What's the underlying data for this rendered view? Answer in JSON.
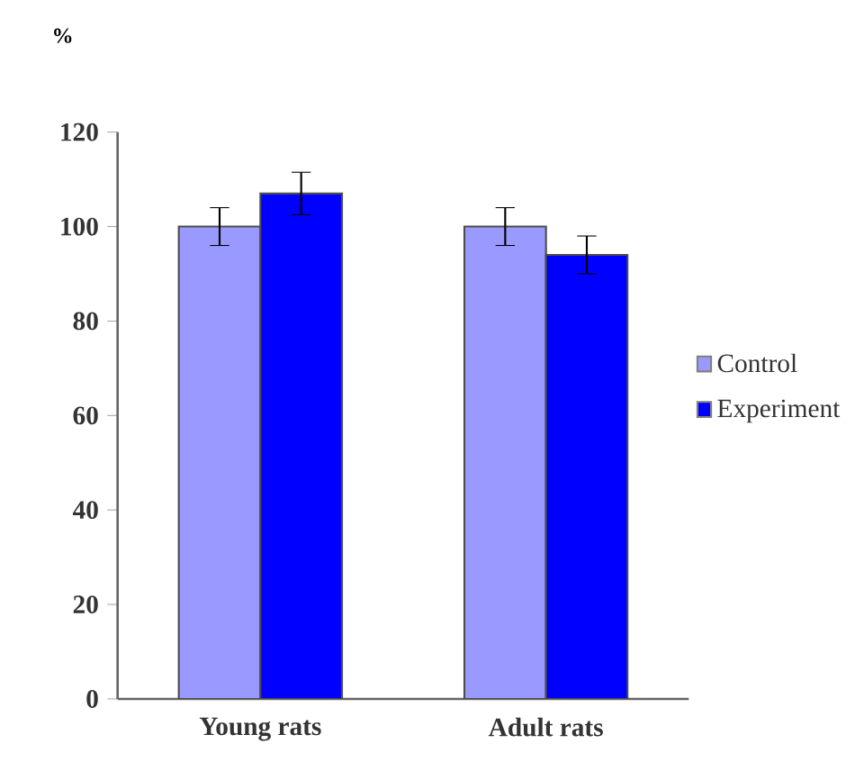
{
  "chart_data": {
    "type": "bar",
    "ylabel": "%",
    "categories": [
      "Young rats",
      "Adult rats"
    ],
    "series": [
      {
        "name": "Control",
        "color": "#9999ff",
        "values": [
          100,
          100
        ],
        "errors": [
          4,
          4
        ]
      },
      {
        "name": "Experiment",
        "color": "#0000ff",
        "values": [
          107,
          94
        ],
        "errors": [
          4.5,
          4
        ]
      }
    ],
    "ylim": [
      0,
      120
    ],
    "yticks": [
      0,
      20,
      40,
      60,
      80,
      100,
      120
    ],
    "legend": "right",
    "grid": false
  }
}
